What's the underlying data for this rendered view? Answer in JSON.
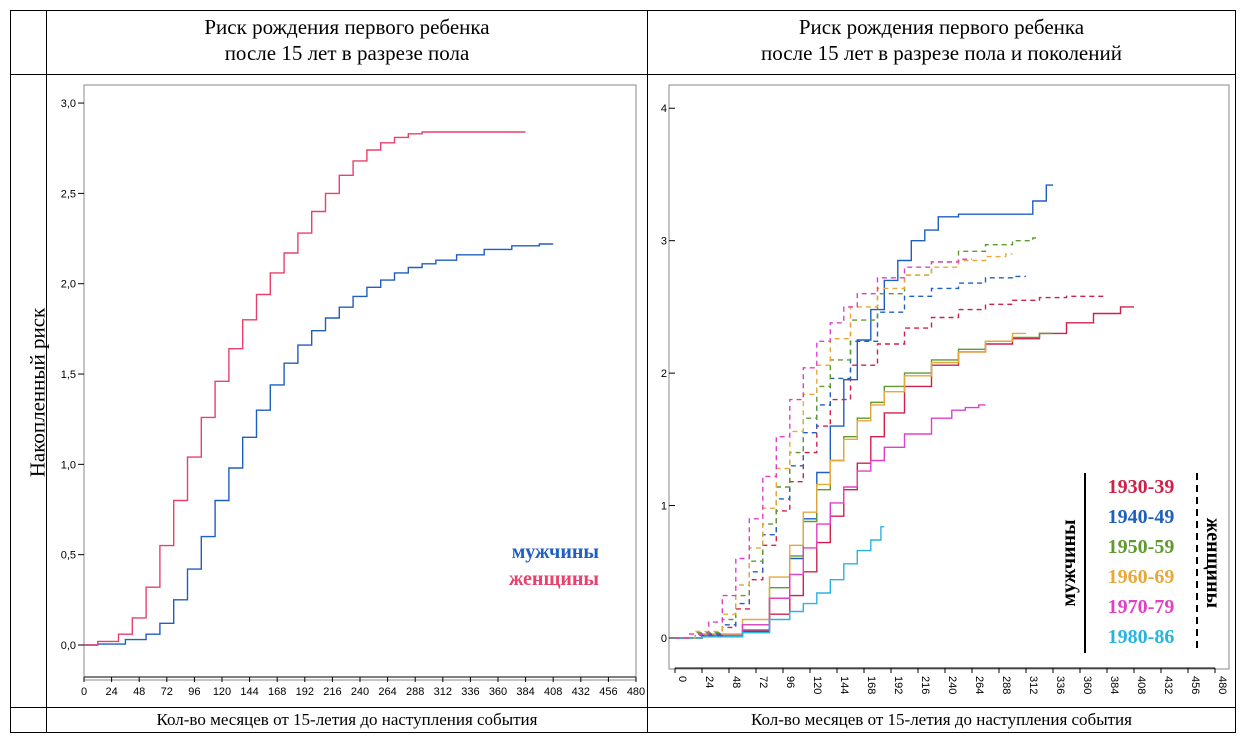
{
  "left": {
    "title_line1": "Риск рождения первого ребенка",
    "title_line2": "после 15 лет в разрезе пола",
    "ylabel": "Накопленный риск",
    "xlabel": "Кол-во месяцев от 15-летия до наступления события",
    "legend": [
      {
        "label": "мужчины",
        "color": "#1f5fbf"
      },
      {
        "label": "женщины",
        "color": "#e8416b"
      }
    ]
  },
  "right": {
    "title_line1": "Риск рождения первого ребенка",
    "title_line2": "после 15 лет в разрезе пола и поколений",
    "xlabel": "Кол-во месяцев от 15-летия до наступления события",
    "legend_side_left": "мужчины",
    "legend_side_right": "женщины",
    "legend": [
      {
        "label": "1930-39",
        "color": "#d0204a"
      },
      {
        "label": "1940-49",
        "color": "#1f5fbf"
      },
      {
        "label": "1950-59",
        "color": "#5f9a30"
      },
      {
        "label": "1960-69",
        "color": "#e8a83a"
      },
      {
        "label": "1970-79",
        "color": "#e040c8"
      },
      {
        "label": "1980-86",
        "color": "#28b4e0"
      }
    ]
  },
  "chart_data": [
    {
      "type": "line",
      "ylim": [
        0,
        3.1
      ],
      "xlim": [
        0,
        480
      ],
      "xticks": [
        0,
        24,
        48,
        72,
        96,
        120,
        144,
        168,
        192,
        216,
        240,
        264,
        288,
        312,
        336,
        360,
        384,
        408,
        432,
        456,
        480
      ],
      "yticks": [
        {
          "v": 0,
          "t": "0,0"
        },
        {
          "v": 0.5,
          "t": "0,5"
        },
        {
          "v": 1,
          "t": "1,0"
        },
        {
          "v": 1.5,
          "t": "1,5"
        },
        {
          "v": 2,
          "t": "2,0"
        },
        {
          "v": 2.5,
          "t": "2,5"
        },
        {
          "v": 3,
          "t": "3,0"
        }
      ],
      "series": [
        {
          "name": "мужчины",
          "color": "#1f5fbf",
          "dash": false,
          "x": [
            0,
            24,
            48,
            60,
            72,
            84,
            96,
            108,
            120,
            132,
            144,
            156,
            168,
            180,
            192,
            204,
            216,
            228,
            240,
            252,
            264,
            276,
            288,
            300,
            312,
            336,
            360,
            384,
            408
          ],
          "y": [
            0,
            0.005,
            0.03,
            0.06,
            0.12,
            0.25,
            0.42,
            0.6,
            0.8,
            0.98,
            1.15,
            1.3,
            1.44,
            1.56,
            1.66,
            1.74,
            1.81,
            1.87,
            1.93,
            1.98,
            2.02,
            2.06,
            2.09,
            2.11,
            2.13,
            2.16,
            2.19,
            2.21,
            2.22
          ]
        },
        {
          "name": "женщины",
          "color": "#e8416b",
          "dash": false,
          "x": [
            0,
            24,
            36,
            48,
            60,
            72,
            84,
            96,
            108,
            120,
            132,
            144,
            156,
            168,
            180,
            192,
            204,
            216,
            228,
            240,
            252,
            264,
            276,
            288,
            300,
            312,
            336,
            360,
            384
          ],
          "y": [
            0,
            0.02,
            0.06,
            0.15,
            0.32,
            0.55,
            0.8,
            1.04,
            1.26,
            1.46,
            1.64,
            1.8,
            1.94,
            2.06,
            2.17,
            2.28,
            2.4,
            2.5,
            2.6,
            2.68,
            2.74,
            2.78,
            2.81,
            2.83,
            2.84,
            2.84,
            2.84,
            2.84,
            2.84
          ]
        }
      ]
    },
    {
      "type": "line",
      "ylim": [
        0,
        4.1
      ],
      "xlim": [
        0,
        480
      ],
      "xticks": [
        0,
        24,
        48,
        72,
        96,
        120,
        144,
        168,
        192,
        216,
        240,
        264,
        288,
        312,
        336,
        360,
        384,
        408,
        432,
        456,
        480
      ],
      "yticks": [
        {
          "v": 0,
          "t": "0"
        },
        {
          "v": 1,
          "t": "1"
        },
        {
          "v": 2,
          "t": "2"
        },
        {
          "v": 3,
          "t": "3"
        },
        {
          "v": 4,
          "t": "4"
        }
      ],
      "series": [
        {
          "name": "1930-39 мужчины",
          "color": "#d0204a",
          "dash": false,
          "x": [
            0,
            48,
            72,
            96,
            108,
            120,
            132,
            144,
            156,
            168,
            180,
            192,
            216,
            240,
            264,
            288,
            312,
            336,
            360,
            384,
            408
          ],
          "y": [
            0,
            0.02,
            0.06,
            0.18,
            0.32,
            0.5,
            0.72,
            0.92,
            1.12,
            1.32,
            1.52,
            1.7,
            1.9,
            2.06,
            2.16,
            2.22,
            2.26,
            2.3,
            2.38,
            2.45,
            2.5
          ]
        },
        {
          "name": "1940-49 мужчины",
          "color": "#1f5fbf",
          "dash": false,
          "x": [
            0,
            48,
            72,
            96,
            108,
            120,
            132,
            144,
            156,
            168,
            180,
            192,
            204,
            216,
            228,
            240,
            264,
            288,
            312,
            324,
            336
          ],
          "y": [
            0,
            0.01,
            0.05,
            0.3,
            0.6,
            0.9,
            1.25,
            1.6,
            1.95,
            2.25,
            2.48,
            2.7,
            2.85,
            3.0,
            3.08,
            3.18,
            3.2,
            3.2,
            3.2,
            3.3,
            3.42
          ]
        },
        {
          "name": "1950-59 мужчины",
          "color": "#5f9a30",
          "dash": false,
          "x": [
            0,
            48,
            72,
            96,
            108,
            120,
            132,
            144,
            156,
            168,
            180,
            192,
            216,
            240,
            264,
            288,
            312,
            336
          ],
          "y": [
            0,
            0.02,
            0.1,
            0.38,
            0.62,
            0.88,
            1.12,
            1.34,
            1.52,
            1.66,
            1.78,
            1.9,
            2.0,
            2.1,
            2.18,
            2.24,
            2.27,
            2.3
          ]
        },
        {
          "name": "1960-69 мужчины",
          "color": "#e8a83a",
          "dash": false,
          "x": [
            0,
            48,
            72,
            96,
            108,
            120,
            132,
            144,
            156,
            168,
            180,
            192,
            216,
            240,
            264,
            288,
            312
          ],
          "y": [
            0,
            0.03,
            0.14,
            0.46,
            0.7,
            0.95,
            1.16,
            1.34,
            1.5,
            1.64,
            1.76,
            1.86,
            1.98,
            2.08,
            2.16,
            2.24,
            2.3
          ]
        },
        {
          "name": "1970-79 мужчины",
          "color": "#e040c8",
          "dash": false,
          "x": [
            0,
            48,
            72,
            96,
            108,
            120,
            132,
            144,
            156,
            168,
            180,
            192,
            216,
            240,
            252,
            264,
            276
          ],
          "y": [
            0,
            0.02,
            0.1,
            0.3,
            0.48,
            0.68,
            0.86,
            1.02,
            1.14,
            1.26,
            1.34,
            1.44,
            1.54,
            1.66,
            1.72,
            1.74,
            1.76
          ]
        },
        {
          "name": "1980-86 мужчины",
          "color": "#28b4e0",
          "dash": false,
          "x": [
            0,
            48,
            72,
            96,
            108,
            120,
            132,
            144,
            156,
            168,
            180,
            186
          ],
          "y": [
            0,
            0.01,
            0.04,
            0.14,
            0.2,
            0.26,
            0.34,
            0.44,
            0.56,
            0.66,
            0.74,
            0.84
          ]
        },
        {
          "name": "1930-39 женщины",
          "color": "#d0204a",
          "dash": true,
          "x": [
            0,
            36,
            48,
            60,
            72,
            84,
            96,
            108,
            120,
            132,
            144,
            168,
            192,
            216,
            240,
            264,
            288,
            312,
            336,
            360,
            384
          ],
          "y": [
            0,
            0.02,
            0.08,
            0.22,
            0.44,
            0.7,
            0.96,
            1.18,
            1.4,
            1.6,
            1.8,
            2.06,
            2.22,
            2.34,
            2.42,
            2.48,
            2.52,
            2.55,
            2.57,
            2.58,
            2.58
          ]
        },
        {
          "name": "1940-49 женщины",
          "color": "#1f5fbf",
          "dash": true,
          "x": [
            0,
            36,
            48,
            60,
            72,
            84,
            96,
            108,
            120,
            132,
            144,
            168,
            192,
            216,
            240,
            264,
            288,
            312
          ],
          "y": [
            0,
            0.03,
            0.1,
            0.26,
            0.5,
            0.78,
            1.05,
            1.3,
            1.55,
            1.76,
            1.96,
            2.24,
            2.46,
            2.58,
            2.64,
            2.68,
            2.72,
            2.73
          ]
        },
        {
          "name": "1950-59 женщины",
          "color": "#5f9a30",
          "dash": true,
          "x": [
            0,
            36,
            48,
            60,
            72,
            84,
            96,
            108,
            120,
            132,
            144,
            168,
            192,
            216,
            240,
            264,
            288,
            312,
            324
          ],
          "y": [
            0,
            0.04,
            0.14,
            0.32,
            0.58,
            0.86,
            1.14,
            1.4,
            1.66,
            1.9,
            2.1,
            2.4,
            2.6,
            2.74,
            2.84,
            2.92,
            2.97,
            3.0,
            3.02
          ]
        },
        {
          "name": "1960-69 женщины",
          "color": "#e8a83a",
          "dash": true,
          "x": [
            0,
            36,
            48,
            60,
            72,
            84,
            96,
            108,
            120,
            132,
            144,
            168,
            192,
            216,
            240,
            264,
            288,
            300
          ],
          "y": [
            0,
            0.05,
            0.18,
            0.4,
            0.68,
            0.98,
            1.28,
            1.56,
            1.84,
            2.06,
            2.26,
            2.5,
            2.64,
            2.74,
            2.8,
            2.85,
            2.88,
            2.9
          ]
        },
        {
          "name": "1970-79 женщины",
          "color": "#e040c8",
          "dash": true,
          "x": [
            0,
            24,
            36,
            48,
            60,
            72,
            84,
            96,
            108,
            120,
            132,
            144,
            156,
            168,
            192,
            216,
            240,
            264
          ],
          "y": [
            0,
            0.03,
            0.12,
            0.32,
            0.6,
            0.9,
            1.22,
            1.52,
            1.8,
            2.04,
            2.24,
            2.38,
            2.5,
            2.6,
            2.72,
            2.8,
            2.84,
            2.86
          ]
        }
      ]
    }
  ]
}
